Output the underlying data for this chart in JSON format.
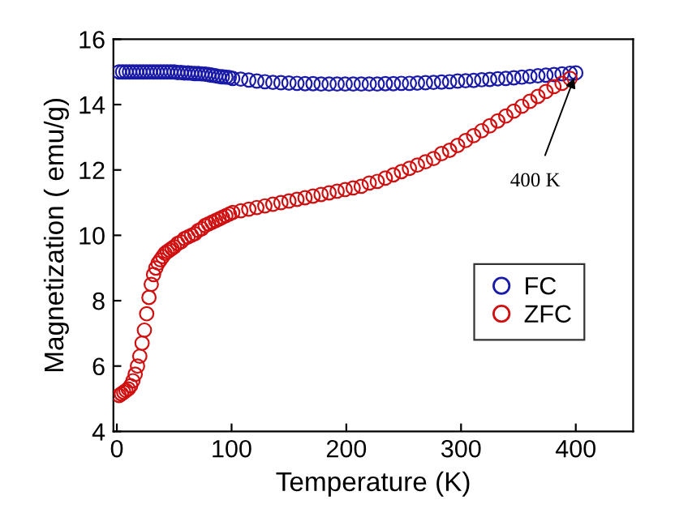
{
  "chart_data": {
    "type": "scatter",
    "xlabel": "Temperature (K)",
    "ylabel": "Magnetization ( emu/g)",
    "xlim": [
      -3,
      450
    ],
    "ylim": [
      4,
      16
    ],
    "xticks": [
      0,
      100,
      200,
      300,
      400
    ],
    "yticks": [
      4,
      6,
      8,
      10,
      12,
      14,
      16
    ],
    "grid": false,
    "legend": "right",
    "marker": "circle",
    "annotations": [
      {
        "text": "400 K",
        "x": 400,
        "y": 14.95
      }
    ],
    "series": [
      {
        "name": "FC",
        "color": "#1a1aa8",
        "x": [
          2,
          5,
          8,
          11,
          14,
          17,
          20,
          23,
          26,
          29,
          32,
          35,
          38,
          41,
          44,
          47,
          50,
          53,
          56,
          59,
          62,
          65,
          68,
          71,
          74,
          77,
          80,
          83,
          86,
          89,
          92,
          95,
          98,
          101,
          108,
          115,
          122,
          129,
          136,
          143,
          150,
          157,
          164,
          171,
          178,
          185,
          192,
          199,
          206,
          213,
          220,
          227,
          234,
          241,
          248,
          255,
          262,
          269,
          276,
          283,
          290,
          297,
          304,
          311,
          318,
          325,
          332,
          339,
          346,
          353,
          360,
          367,
          374,
          381,
          388,
          395,
          400
        ],
        "values": [
          15.0,
          15.0,
          15.0,
          15.0,
          15.0,
          15.0,
          15.0,
          15.0,
          15.0,
          15.0,
          15.0,
          15.0,
          15.0,
          15.0,
          15.0,
          15.0,
          15.0,
          14.98,
          14.98,
          14.97,
          14.97,
          14.96,
          14.95,
          14.95,
          14.94,
          14.93,
          14.92,
          14.9,
          14.88,
          14.86,
          14.85,
          14.84,
          14.83,
          14.8,
          14.78,
          14.75,
          14.72,
          14.7,
          14.68,
          14.67,
          14.66,
          14.65,
          14.64,
          14.64,
          14.63,
          14.63,
          14.63,
          14.63,
          14.63,
          14.63,
          14.63,
          14.63,
          14.64,
          14.64,
          14.65,
          14.65,
          14.66,
          14.67,
          14.68,
          14.69,
          14.7,
          14.72,
          14.73,
          14.74,
          14.76,
          14.77,
          14.79,
          14.8,
          14.82,
          14.84,
          14.86,
          14.88,
          14.9,
          14.92,
          14.94,
          14.96,
          14.97
        ]
      },
      {
        "name": "ZFC",
        "color": "#d01010",
        "x": [
          2,
          4,
          6,
          8,
          10,
          12,
          14,
          16,
          18,
          20,
          22,
          24,
          26,
          28,
          30,
          32,
          34,
          36,
          38,
          40,
          42,
          44,
          46,
          48,
          50,
          53,
          56,
          59,
          62,
          65,
          68,
          71,
          74,
          77,
          80,
          83,
          86,
          89,
          92,
          95,
          98,
          101,
          108,
          115,
          122,
          129,
          136,
          143,
          150,
          157,
          164,
          171,
          178,
          185,
          192,
          199,
          206,
          213,
          220,
          227,
          234,
          241,
          248,
          255,
          262,
          269,
          276,
          283,
          290,
          297,
          304,
          311,
          318,
          325,
          332,
          339,
          346,
          353,
          360,
          367,
          374,
          381,
          388,
          395
        ],
        "values": [
          5.1,
          5.15,
          5.2,
          5.25,
          5.3,
          5.4,
          5.55,
          5.75,
          6.0,
          6.3,
          6.7,
          7.1,
          7.6,
          8.1,
          8.5,
          8.8,
          9.0,
          9.15,
          9.25,
          9.35,
          9.45,
          9.5,
          9.55,
          9.6,
          9.65,
          9.75,
          9.8,
          9.9,
          9.95,
          10.0,
          10.05,
          10.15,
          10.2,
          10.3,
          10.35,
          10.4,
          10.45,
          10.5,
          10.55,
          10.6,
          10.65,
          10.7,
          10.75,
          10.8,
          10.85,
          10.9,
          10.95,
          11.0,
          11.05,
          11.1,
          11.15,
          11.2,
          11.25,
          11.3,
          11.35,
          11.4,
          11.45,
          11.5,
          11.6,
          11.65,
          11.75,
          11.85,
          11.95,
          12.05,
          12.15,
          12.25,
          12.35,
          12.5,
          12.6,
          12.75,
          12.9,
          13.05,
          13.2,
          13.35,
          13.5,
          13.65,
          13.8,
          13.95,
          14.1,
          14.25,
          14.4,
          14.55,
          14.65,
          14.8
        ]
      }
    ]
  }
}
